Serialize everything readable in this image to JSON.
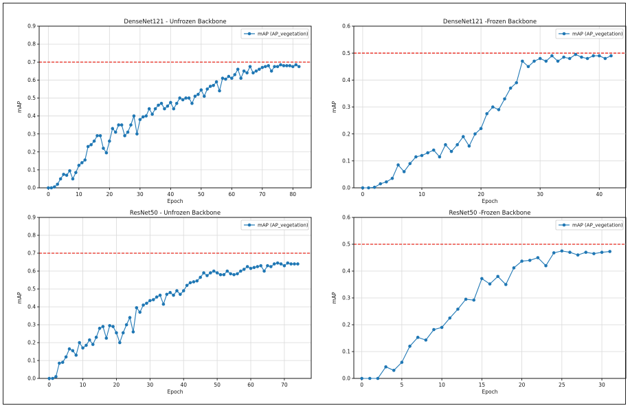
{
  "colors": {
    "series": "#1f77b4",
    "threshold": "#e8271c",
    "grid": "#d9d9d9",
    "axis": "#000000"
  },
  "chart_data": [
    {
      "type": "line",
      "title": "DenseNet121 - Unfrozen Backbone",
      "xlabel": "Epoch",
      "ylabel": "mAP",
      "xlim": [
        -3,
        86
      ],
      "ylim": [
        0,
        0.9
      ],
      "xticks": [
        0,
        10,
        20,
        30,
        40,
        50,
        60,
        70,
        80
      ],
      "yticks": [
        0,
        0.1,
        0.2,
        0.3,
        0.4,
        0.5,
        0.6,
        0.7,
        0.8,
        0.9
      ],
      "grid": true,
      "legend_position": "top-right",
      "threshold": 0.7,
      "series": [
        {
          "name": "mAP (AP_vegetation)",
          "x": [
            0,
            1,
            2,
            3,
            4,
            5,
            6,
            7,
            8,
            9,
            10,
            11,
            12,
            13,
            14,
            15,
            16,
            17,
            18,
            19,
            20,
            21,
            22,
            23,
            24,
            25,
            26,
            27,
            28,
            29,
            30,
            31,
            32,
            33,
            34,
            35,
            36,
            37,
            38,
            39,
            40,
            41,
            42,
            43,
            44,
            45,
            46,
            47,
            48,
            49,
            50,
            51,
            52,
            53,
            54,
            55,
            56,
            57,
            58,
            59,
            60,
            61,
            62,
            63,
            64,
            65,
            66,
            67,
            68,
            69,
            70,
            71,
            72,
            73,
            74,
            75,
            76,
            77,
            78,
            79,
            80,
            81,
            82
          ],
          "values": [
            0,
            0,
            0.005,
            0.02,
            0.05,
            0.075,
            0.07,
            0.095,
            0.05,
            0.085,
            0.125,
            0.14,
            0.155,
            0.23,
            0.24,
            0.26,
            0.29,
            0.29,
            0.22,
            0.195,
            0.26,
            0.33,
            0.31,
            0.35,
            0.35,
            0.29,
            0.31,
            0.35,
            0.4,
            0.3,
            0.38,
            0.395,
            0.4,
            0.44,
            0.41,
            0.44,
            0.46,
            0.47,
            0.44,
            0.455,
            0.475,
            0.44,
            0.47,
            0.5,
            0.49,
            0.5,
            0.5,
            0.47,
            0.51,
            0.52,
            0.545,
            0.51,
            0.55,
            0.565,
            0.57,
            0.59,
            0.54,
            0.61,
            0.605,
            0.62,
            0.61,
            0.63,
            0.66,
            0.61,
            0.65,
            0.64,
            0.675,
            0.64,
            0.65,
            0.66,
            0.67,
            0.675,
            0.68,
            0.65,
            0.675,
            0.675,
            0.685,
            0.68,
            0.68,
            0.68,
            0.675,
            0.685,
            0.675
          ]
        }
      ]
    },
    {
      "type": "line",
      "title": "DenseNet121 -Frozen Backbone",
      "xlabel": "Epoch",
      "ylabel": "mAP",
      "xlim": [
        -1.5,
        44.5
      ],
      "ylim": [
        0,
        0.6
      ],
      "xticks": [
        0,
        10,
        20,
        30,
        40
      ],
      "yticks": [
        0,
        0.1,
        0.2,
        0.3,
        0.4,
        0.5,
        0.6
      ],
      "grid": true,
      "legend_position": "top-right",
      "threshold": 0.5,
      "series": [
        {
          "name": "mAP (AP_vegetation)",
          "x": [
            0,
            1,
            2,
            3,
            4,
            5,
            6,
            7,
            8,
            9,
            10,
            11,
            12,
            13,
            14,
            15,
            16,
            17,
            18,
            19,
            20,
            21,
            22,
            23,
            24,
            25,
            26,
            27,
            28,
            29,
            30,
            31,
            32,
            33,
            34,
            35,
            36,
            37,
            38,
            39,
            40,
            41,
            42
          ],
          "values": [
            0,
            0,
            0.002,
            0.015,
            0.022,
            0.035,
            0.085,
            0.06,
            0.09,
            0.115,
            0.12,
            0.13,
            0.14,
            0.115,
            0.16,
            0.135,
            0.16,
            0.19,
            0.155,
            0.2,
            0.22,
            0.275,
            0.3,
            0.29,
            0.33,
            0.37,
            0.39,
            0.47,
            0.45,
            0.47,
            0.48,
            0.47,
            0.49,
            0.47,
            0.485,
            0.48,
            0.495,
            0.485,
            0.48,
            0.49,
            0.49,
            0.48,
            0.49
          ]
        }
      ]
    },
    {
      "type": "line",
      "title": "ResNet50 - Unfrozen Backbone",
      "xlabel": "Epoch",
      "ylabel": "mAP",
      "xlim": [
        -3,
        78
      ],
      "ylim": [
        0,
        0.9
      ],
      "xticks": [
        0,
        10,
        20,
        30,
        40,
        50,
        60,
        70
      ],
      "yticks": [
        0,
        0.1,
        0.2,
        0.3,
        0.4,
        0.5,
        0.6,
        0.7,
        0.8,
        0.9
      ],
      "grid": true,
      "legend_position": "top-right",
      "threshold": 0.7,
      "series": [
        {
          "name": "mAP (AP_vegetation)",
          "x": [
            0,
            1,
            2,
            3,
            4,
            5,
            6,
            7,
            8,
            9,
            10,
            11,
            12,
            13,
            14,
            15,
            16,
            17,
            18,
            19,
            20,
            21,
            22,
            23,
            24,
            25,
            26,
            27,
            28,
            29,
            30,
            31,
            32,
            33,
            34,
            35,
            36,
            37,
            38,
            39,
            40,
            41,
            42,
            43,
            44,
            45,
            46,
            47,
            48,
            49,
            50,
            51,
            52,
            53,
            54,
            55,
            56,
            57,
            58,
            59,
            60,
            61,
            62,
            63,
            64,
            65,
            66,
            67,
            68,
            69,
            70,
            71,
            72,
            73,
            74
          ],
          "values": [
            0,
            0,
            0.01,
            0.085,
            0.09,
            0.12,
            0.165,
            0.155,
            0.13,
            0.2,
            0.17,
            0.185,
            0.215,
            0.19,
            0.23,
            0.28,
            0.29,
            0.225,
            0.295,
            0.29,
            0.255,
            0.2,
            0.255,
            0.3,
            0.34,
            0.26,
            0.395,
            0.37,
            0.41,
            0.42,
            0.435,
            0.44,
            0.455,
            0.465,
            0.415,
            0.47,
            0.48,
            0.465,
            0.49,
            0.47,
            0.49,
            0.52,
            0.535,
            0.54,
            0.545,
            0.565,
            0.59,
            0.575,
            0.59,
            0.6,
            0.59,
            0.58,
            0.58,
            0.6,
            0.585,
            0.58,
            0.585,
            0.6,
            0.61,
            0.625,
            0.615,
            0.62,
            0.625,
            0.63,
            0.6,
            0.63,
            0.625,
            0.64,
            0.645,
            0.64,
            0.63,
            0.645,
            0.64,
            0.64,
            0.64
          ]
        }
      ]
    },
    {
      "type": "line",
      "title": "ResNet50 -Frozen Backbone",
      "xlabel": "Epoch",
      "ylabel": "mAP",
      "xlim": [
        -1,
        33
      ],
      "ylim": [
        0,
        0.6
      ],
      "xticks": [
        0,
        5,
        10,
        15,
        20,
        25,
        30
      ],
      "yticks": [
        0,
        0.1,
        0.2,
        0.3,
        0.4,
        0.5,
        0.6
      ],
      "grid": true,
      "legend_position": "top-right",
      "threshold": 0.5,
      "series": [
        {
          "name": "mAP (AP_vegetation)",
          "x": [
            0,
            1,
            2,
            3,
            4,
            5,
            6,
            7,
            8,
            9,
            10,
            11,
            12,
            13,
            14,
            15,
            16,
            17,
            18,
            19,
            20,
            21,
            22,
            23,
            24,
            25,
            26,
            27,
            28,
            29,
            30,
            31
          ],
          "values": [
            0,
            0,
            0,
            0.043,
            0.03,
            0.06,
            0.12,
            0.153,
            0.143,
            0.182,
            0.19,
            0.225,
            0.258,
            0.295,
            0.292,
            0.372,
            0.352,
            0.38,
            0.35,
            0.412,
            0.437,
            0.44,
            0.45,
            0.42,
            0.468,
            0.475,
            0.47,
            0.46,
            0.47,
            0.465,
            0.47,
            0.473
          ]
        }
      ]
    }
  ]
}
